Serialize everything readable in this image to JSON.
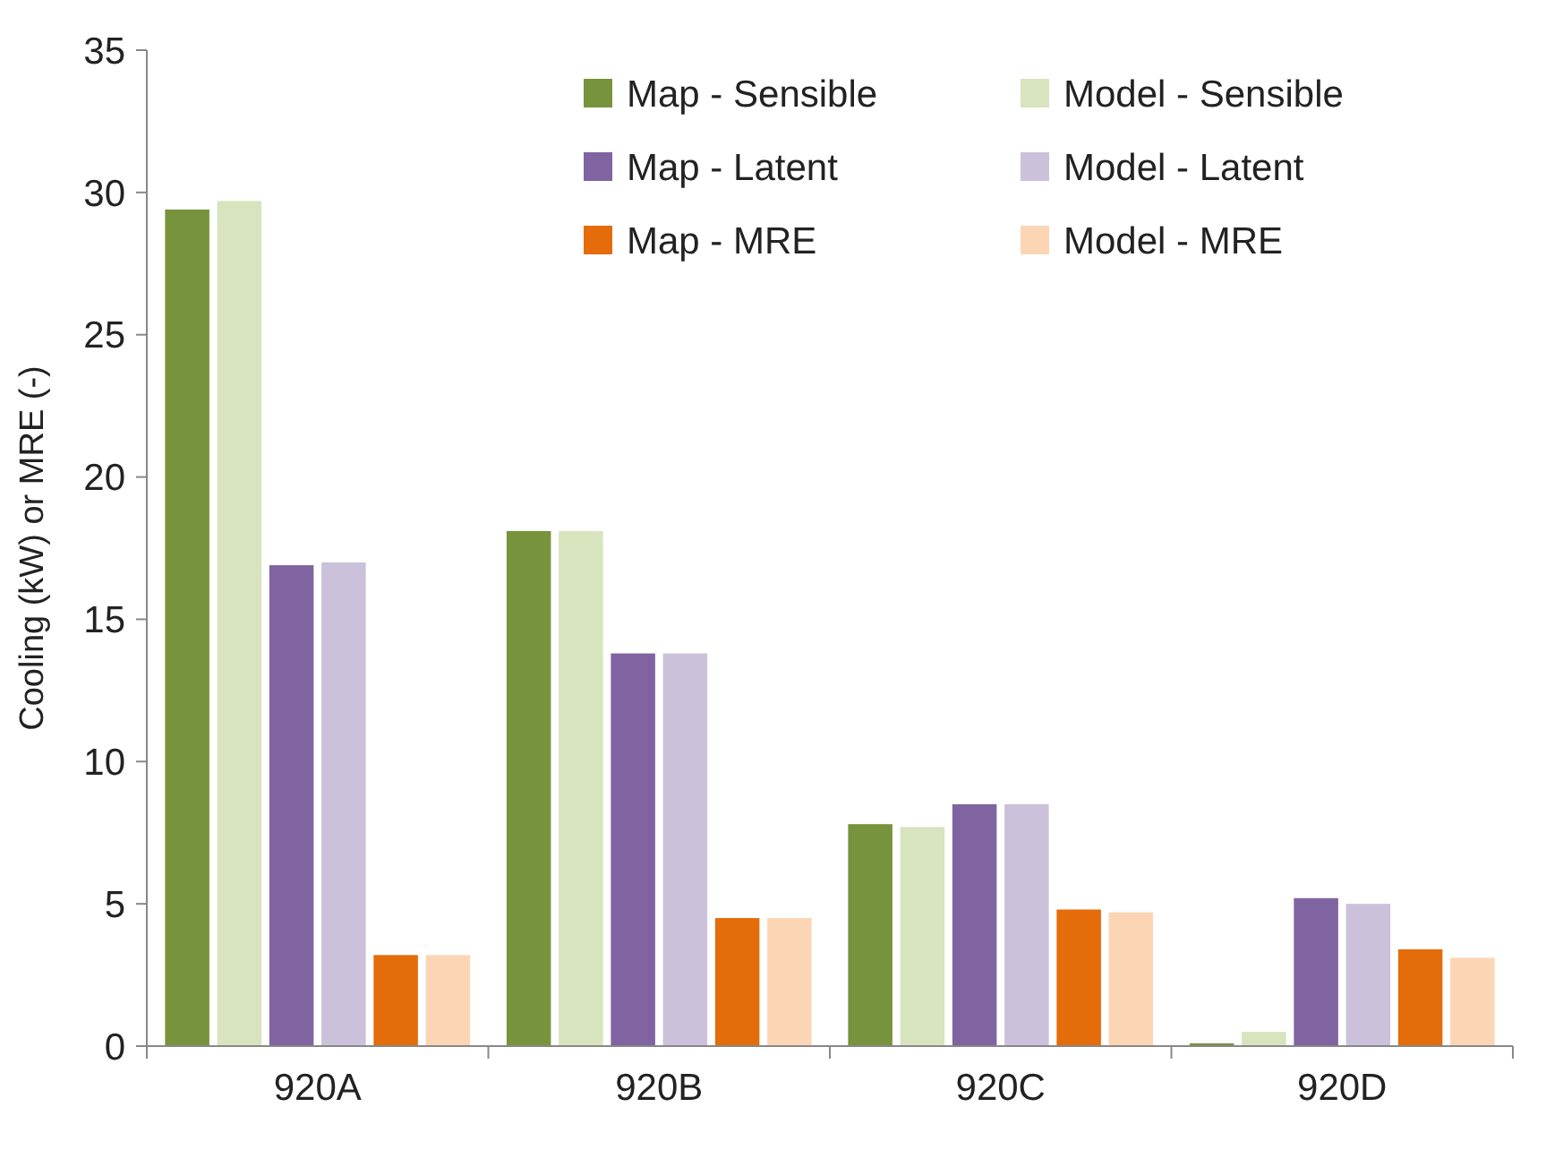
{
  "chart_data": {
    "type": "bar",
    "ylabel": "Cooling (kW) or MRE (-)",
    "categories": [
      "920A",
      "920B",
      "920C",
      "920D"
    ],
    "series": [
      {
        "name": "Map - Sensible",
        "color": "#77933c",
        "values": [
          29.4,
          18.1,
          7.8,
          0.1
        ]
      },
      {
        "name": "Model - Sensible",
        "color": "#d7e4bd",
        "values": [
          29.7,
          18.1,
          7.7,
          0.5
        ]
      },
      {
        "name": "Map - Latent",
        "color": "#8064a2",
        "values": [
          16.9,
          13.8,
          8.5,
          5.2
        ]
      },
      {
        "name": "Model - Latent",
        "color": "#ccc1da",
        "values": [
          17.0,
          13.8,
          8.5,
          5.0
        ]
      },
      {
        "name": "Map - MRE",
        "color": "#e46c0a",
        "values": [
          3.2,
          4.5,
          4.8,
          3.4
        ]
      },
      {
        "name": "Model - MRE",
        "color": "#fcd5b5",
        "values": [
          3.2,
          4.5,
          4.7,
          3.1
        ]
      }
    ],
    "ylim": [
      0,
      35
    ],
    "yticks": [
      0,
      5,
      10,
      15,
      20,
      25,
      30,
      35
    ],
    "grid": false,
    "legend": "top right"
  }
}
